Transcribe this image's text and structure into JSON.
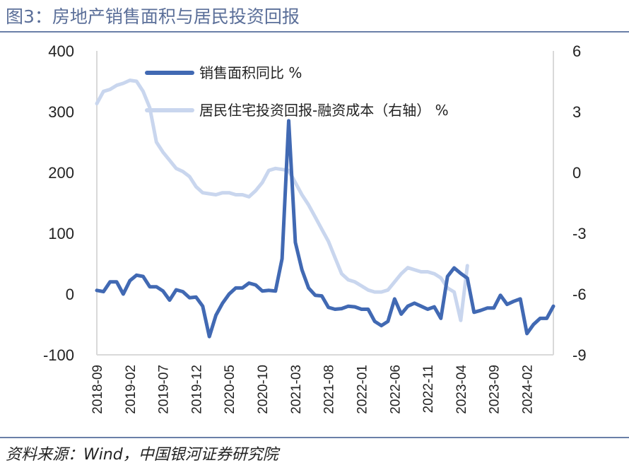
{
  "title": "图3：房地产销售面积与居民投资回报",
  "source": "资料来源：Wind，中国银河证券研究院",
  "colors": {
    "dark_series": "#4169b3",
    "light_series": "#c9d6ee",
    "rule": "#6a7fa8",
    "title": "#5b6f99"
  },
  "chart_data": {
    "type": "line",
    "title": "",
    "legend_position": "top-left",
    "grid": false,
    "left_axis": {
      "ylim": [
        -100,
        400
      ],
      "ticks": [
        "400",
        "300",
        "200",
        "100",
        "0",
        "-100"
      ]
    },
    "right_axis": {
      "ylim": [
        -9,
        6
      ],
      "ticks": [
        "6",
        "3",
        "0",
        "-3",
        "-6",
        "-9"
      ]
    },
    "x_tick_labels": [
      "2018-09",
      "2019-02",
      "2019-07",
      "2019-12",
      "2020-05",
      "2020-10",
      "2021-03",
      "2021-08",
      "2022-01",
      "2022-06",
      "2022-11",
      "2023-04",
      "2023-09",
      "2024-02"
    ],
    "series": [
      {
        "name": "销售面积同比 %",
        "axis": "left",
        "values": [
          6,
          4,
          20,
          20,
          0,
          22,
          31,
          29,
          12,
          12,
          5,
          -10,
          7,
          4,
          -6,
          -5,
          -20,
          -70,
          -35,
          -15,
          0,
          10,
          10,
          18,
          15,
          5,
          6,
          5,
          58,
          285,
          85,
          40,
          10,
          -2,
          -3,
          -22,
          -25,
          -24,
          -20,
          -21,
          -25,
          -25,
          -45,
          -52,
          -45,
          -8,
          -33,
          -20,
          -15,
          -20,
          -25,
          -21,
          -40,
          29,
          43,
          34,
          26,
          -30,
          -27,
          -23,
          -23,
          -2,
          -17,
          -12,
          -8,
          -65,
          -50,
          -40,
          -40,
          -20
        ]
      },
      {
        "name": "居民住宅投资回报-融资成本（右轴） %",
        "axis": "right",
        "values": [
          3.4,
          4.0,
          4.1,
          4.3,
          4.4,
          4.55,
          4.5,
          4.0,
          3.2,
          1.5,
          1.0,
          0.6,
          0.2,
          0.05,
          -0.2,
          -0.7,
          -1.0,
          -1.05,
          -1.1,
          -1.0,
          -1.0,
          -1.1,
          -1.1,
          -1.2,
          -0.9,
          -0.5,
          0.1,
          0.2,
          0.15,
          0.1,
          -0.5,
          -1.1,
          -1.6,
          -2.2,
          -2.8,
          -3.4,
          -4.2,
          -5.0,
          -5.3,
          -5.4,
          -5.6,
          -5.8,
          -5.9,
          -5.9,
          -5.8,
          -5.4,
          -5.0,
          -4.7,
          -4.8,
          -4.9,
          -4.9,
          -5.0,
          -5.2,
          -5.7,
          -5.9,
          -7.3,
          -4.6
        ]
      }
    ]
  }
}
